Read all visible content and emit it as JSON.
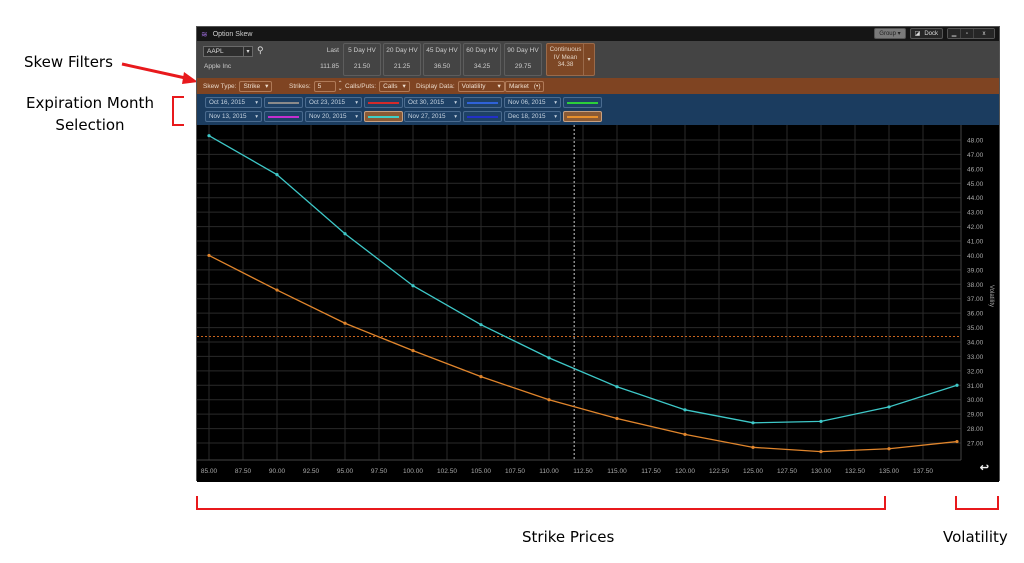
{
  "annotations": {
    "skew_filters": "Skew Filters",
    "expiration_line1": "Expiration Month",
    "expiration_line2": "Selection",
    "strike_prices": "Strike Prices",
    "volatility": "Volatility"
  },
  "window": {
    "title": "Option Skew",
    "title_icon": "option-skew-icon",
    "buttons": {
      "group": "Group ▾",
      "dock": "Dock",
      "minimize": "▁",
      "maximize": "▫",
      "close": "x"
    }
  },
  "quote": {
    "symbol": "AAPL",
    "company": "Apple Inc",
    "last_label": "Last",
    "last_value": "111.85",
    "hv": [
      {
        "label": "5 Day HV",
        "value": "21.50"
      },
      {
        "label": "20 Day HV",
        "value": "21.25"
      },
      {
        "label": "45 Day HV",
        "value": "36.50"
      },
      {
        "label": "60 Day HV",
        "value": "34.25"
      },
      {
        "label": "90 Day HV",
        "value": "29.75"
      }
    ],
    "iv_mean": {
      "line1": "Continuous",
      "line2": "IV Mean",
      "value": "34.38"
    }
  },
  "filters": {
    "skew_type_label": "Skew Type:",
    "skew_type_value": "Strike",
    "strikes_label": "Strikes:",
    "strikes_value": "5",
    "calls_puts_label": "Calls/Puts:",
    "calls_puts_value": "Calls",
    "display_data_label": "Display Data:",
    "display_data_value": "Volatility",
    "market_label": "Market",
    "market_icon": "(•)"
  },
  "expirations": [
    {
      "date": "Oct 16, 2015",
      "color": "#8a8a8a",
      "selected": false
    },
    {
      "date": "Oct 23, 2015",
      "color": "#d42a2a",
      "selected": false
    },
    {
      "date": "Oct 30, 2015",
      "color": "#2f62d8",
      "selected": false
    },
    {
      "date": "Nov 06, 2015",
      "color": "#2ccf3a",
      "selected": false
    },
    {
      "date": "Nov 13, 2015",
      "color": "#c42fd0",
      "selected": false
    },
    {
      "date": "Nov 20, 2015",
      "color": "#3ed0c8",
      "selected": true
    },
    {
      "date": "Nov 27, 2015",
      "color": "#2230c8",
      "selected": false
    },
    {
      "date": "Dec 18, 2015",
      "color": "#e8902c",
      "selected": true
    }
  ],
  "chart_data": {
    "type": "line",
    "title": "Option Skew",
    "xlabel": "Strike",
    "ylabel": "Volatility",
    "x": [
      85,
      90,
      95,
      100,
      105,
      110,
      115,
      120,
      125,
      130,
      135,
      140
    ],
    "x_tick_labels": [
      "85.00",
      "87.50",
      "90.00",
      "92.50",
      "95.00",
      "97.50",
      "100.00",
      "102.50",
      "105.00",
      "107.50",
      "110.00",
      "112.50",
      "115.00",
      "117.50",
      "120.00",
      "122.50",
      "125.00",
      "127.50",
      "130.00",
      "132.50",
      "135.00",
      "137.50"
    ],
    "y_tick_labels": [
      "48.00",
      "47.00",
      "46.00",
      "45.00",
      "44.00",
      "43.00",
      "42.00",
      "41.00",
      "40.00",
      "39.00",
      "38.00",
      "37.00",
      "36.00",
      "35.00",
      "34.00",
      "33.00",
      "32.00",
      "31.00",
      "30.00",
      "29.00",
      "28.00",
      "27.00"
    ],
    "xlim": [
      85,
      140
    ],
    "ylim": [
      26,
      48.5
    ],
    "grid": true,
    "series": [
      {
        "name": "Nov 20, 2015",
        "color": "#3ec8c8",
        "values": [
          48.3,
          45.6,
          41.5,
          37.9,
          35.2,
          32.9,
          30.9,
          29.3,
          28.4,
          28.5,
          29.5,
          31.0
        ]
      },
      {
        "name": "Dec 18, 2015",
        "color": "#e0852c",
        "values": [
          40.0,
          37.6,
          35.3,
          33.4,
          31.6,
          30.0,
          28.7,
          27.6,
          26.7,
          26.4,
          26.6,
          27.1
        ]
      }
    ],
    "reference_lines": {
      "iv_mean": {
        "axis": "y",
        "value": 34.38,
        "color": "#c8641e",
        "style": "dashed"
      },
      "last_price": {
        "axis": "x",
        "value": 111.85,
        "color": "#cccccc",
        "style": "dashed"
      }
    }
  }
}
